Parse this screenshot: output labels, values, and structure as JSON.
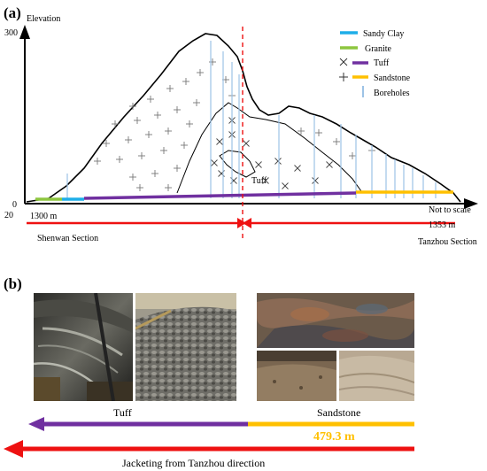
{
  "panel_a": {
    "label": "(a)",
    "axis": {
      "title": "Elevation",
      "tick_top": "300",
      "tick_zero": "0",
      "tick_below": "20"
    },
    "legend": [
      {
        "label": "Sandy Clay",
        "symbol": "line",
        "color": "#1eaee8"
      },
      {
        "label": "Granite",
        "symbol": "line",
        "color": "#8dc63f"
      },
      {
        "label": "Tuff",
        "symbol": "x",
        "color": "#7030a0"
      },
      {
        "label": "Sandstone",
        "symbol": "plus",
        "color": "#ffc000"
      },
      {
        "label": "Boreholes",
        "symbol": "borehole",
        "color": "#9dc3e6"
      }
    ],
    "tuff_zone_label": "Tuff",
    "scale_note": "Not to scale",
    "left_chainage": "1300 m",
    "right_chainage": "1353 m",
    "left_section": "Shenwan Section",
    "right_section": "Tanzhou Section"
  },
  "panel_b": {
    "label": "(b)",
    "photos": [
      {
        "name": "tuff-tunnel-photo",
        "icon": "tunnel-shield-photo"
      },
      {
        "name": "tuff-muck-photo",
        "icon": "gravel-pile-photo"
      },
      {
        "name": "sandstone-face-photo",
        "icon": "rock-face-photo"
      },
      {
        "name": "sandstone-muck-photo-1",
        "icon": "muck-photo"
      },
      {
        "name": "sandstone-muck-photo-2",
        "icon": "muck-photo"
      }
    ],
    "tuff_label": "Tuff",
    "sandstone_label": "Sandstone",
    "distance_label": "479.3 m",
    "direction_label": "Jacketing from Tanzhou direction",
    "colors": {
      "tuff": "#7030a0",
      "sandstone": "#ffc000",
      "arrow": "#ee1111",
      "distance": "#ffc000"
    }
  }
}
